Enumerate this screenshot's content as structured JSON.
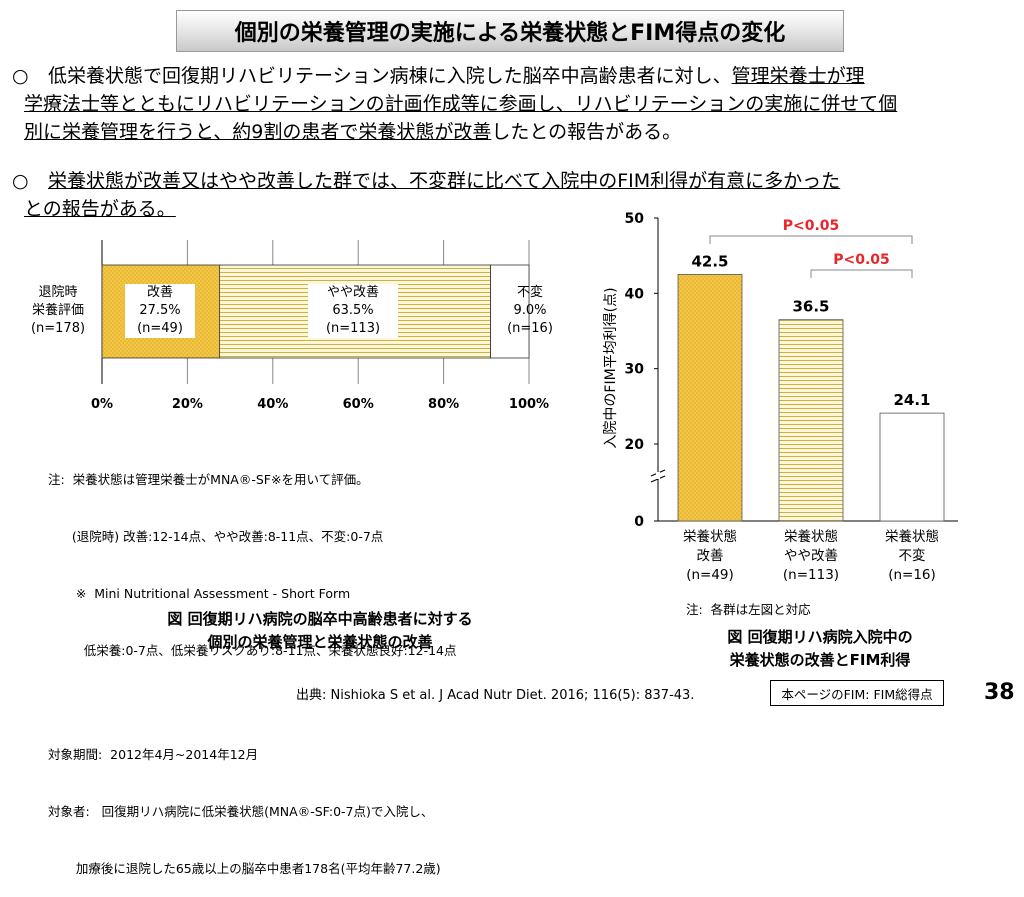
{
  "title": "個別の栄養管理の実施による栄養状態とFIM得点の変化",
  "bullets": [
    {
      "mark": "○",
      "l1a": "低栄養状態で回復期リハビリテーション病棟に入院した脳卒中高齢患者に対し、",
      "l1b": "管理栄養士が理",
      "l2": "学療法士等とともにリハビリテーションの計画作成等に参画し、リハビリテーションの実施に併せて個",
      "l3a": "別に栄養管理を行うと、約9割の患者で栄養状態が改善",
      "l3b": "したとの報告がある。"
    },
    {
      "mark": "○",
      "l1": "栄養状態が改善又はやや改善した群では、不変群に比べて入院中のFIM利得が有意に多かった",
      "l2": "との報告がある。"
    }
  ],
  "left_chart": {
    "row_label": [
      "退院時",
      "栄養評価",
      "(n=178)"
    ],
    "segments": [
      {
        "name": "改善",
        "pct_label": "27.5%",
        "n_label": "(n=49)"
      },
      {
        "name": "やや改善",
        "pct_label": "63.5%",
        "n_label": "(n=113)"
      },
      {
        "name": "不変",
        "pct_label": "9.0%",
        "n_label": "(n=16)"
      }
    ],
    "ticks": [
      "0%",
      "20%",
      "40%",
      "60%",
      "80%",
      "100%"
    ]
  },
  "notes_left": {
    "n1": "注:  栄養状態は管理栄養士がMNA®-SF※を用いて評価。",
    "n2": "      (退院時) 改善:12-14点、やや改善:8-11点、不変:0-7点",
    "n3": "       ※  Mini Nutritional Assessment - Short Form",
    "n4": "         低栄養:0-7点、低栄養リスクあり:8-11点、栄養状態良好:12-14点",
    "p1": "対象期間:  2012年4月~2014年12月",
    "p2": "対象者:   回復期リハ病院に低栄養状態(MNA®-SF:0-7点)で入院し、",
    "p3": "       加療後に退院した65歳以上の脳卒中患者178名(平均年齢77.2歳)"
  },
  "caption_left": [
    "図  回復期リハ病院の脳卒中高齢患者に対する",
    "個別の栄養管理と栄養状態の改善"
  ],
  "right_chart": {
    "ylabel": "入院中のFIM平均利得(点)",
    "yticks": [
      "50",
      "40",
      "30",
      "20",
      "0"
    ],
    "bars": [
      {
        "value_label": "42.5",
        "l1": "栄養状態",
        "l2": "改善",
        "l3": "(n=49)"
      },
      {
        "value_label": "36.5",
        "l1": "栄養状態",
        "l2": "やや改善",
        "l3": "(n=113)"
      },
      {
        "value_label": "24.1",
        "l1": "栄養状態",
        "l2": "不変",
        "l3": "(n=16)"
      }
    ],
    "sig1": "P<0.05",
    "sig2": "P<0.05",
    "note": "注:  各群は左図と対応"
  },
  "caption_right": [
    "図  回復期リハ病院入院中の",
    "栄養状態の改善とFIM利得"
  ],
  "source": "出典: Nishioka S et al. J Acad Nutr Diet. 2016; 116(5): 837-43.",
  "fim_box": "本ページのFIM: FIM総得点",
  "page_number": "38",
  "chart_data": [
    {
      "type": "bar",
      "orientation": "horizontal-stacked",
      "categories": [
        "退院時栄養評価"
      ],
      "series": [
        {
          "name": "改善",
          "values": [
            27.5
          ]
        },
        {
          "name": "やや改善",
          "values": [
            63.5
          ]
        },
        {
          "name": "不変",
          "values": [
            9.0
          ]
        }
      ],
      "xlim": [
        0,
        100
      ],
      "ticks": [
        "0%",
        "20%",
        "40%",
        "60%",
        "80%",
        "100%"
      ]
    },
    {
      "type": "bar",
      "categories": [
        "栄養状態改善",
        "栄養状態やや改善",
        "栄養状態不変"
      ],
      "values": [
        42.5,
        36.5,
        24.1
      ],
      "ylabel": "入院中のFIM平均利得(点)",
      "ylim": [
        0,
        50
      ],
      "axis_break": true
    }
  ],
  "colors": {
    "improve": "#f2c646",
    "slight": "#fdf6d0",
    "stripe": "#c9b24a",
    "sig": "#e8262a"
  }
}
